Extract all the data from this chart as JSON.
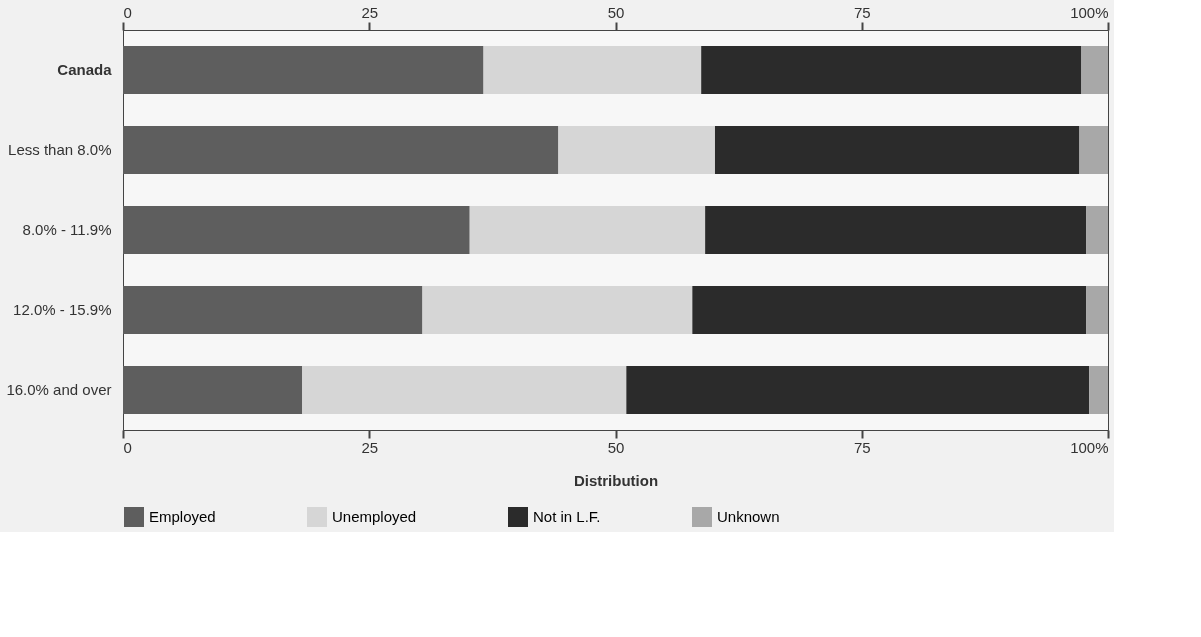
{
  "chart_data": {
    "type": "bar",
    "orientation": "horizontal",
    "stacked": true,
    "categories": [
      "Canada",
      "Less than 8.0%",
      "8.0% - 11.9%",
      "12.0% - 15.9%",
      "16.0% and over"
    ],
    "series": [
      {
        "name": "Employed",
        "color": "#5e5e5e",
        "values": [
          36.6,
          44.2,
          35.2,
          30.4,
          18.2
        ]
      },
      {
        "name": "Unemployed",
        "color": "#d6d6d6",
        "values": [
          22.1,
          15.9,
          23.9,
          27.4,
          32.9
        ]
      },
      {
        "name": "Not in L.F.",
        "color": "#2b2b2b",
        "values": [
          38.6,
          37.0,
          38.7,
          40.0,
          47.0
        ]
      },
      {
        "name": "Unknown",
        "color": "#a8a8a8",
        "values": [
          2.7,
          2.9,
          2.2,
          2.2,
          1.9
        ]
      }
    ],
    "xlabel": "Distribution",
    "xlim": [
      0,
      100
    ],
    "xticks": [
      0,
      25,
      50,
      75,
      {
        "value": 100,
        "label": "100%"
      }
    ],
    "x2lim": [
      0,
      100
    ],
    "x2ticks": [
      0,
      25,
      50,
      75,
      {
        "value": 100,
        "label": "100%"
      }
    ],
    "grid": false,
    "legend": "bottom"
  }
}
